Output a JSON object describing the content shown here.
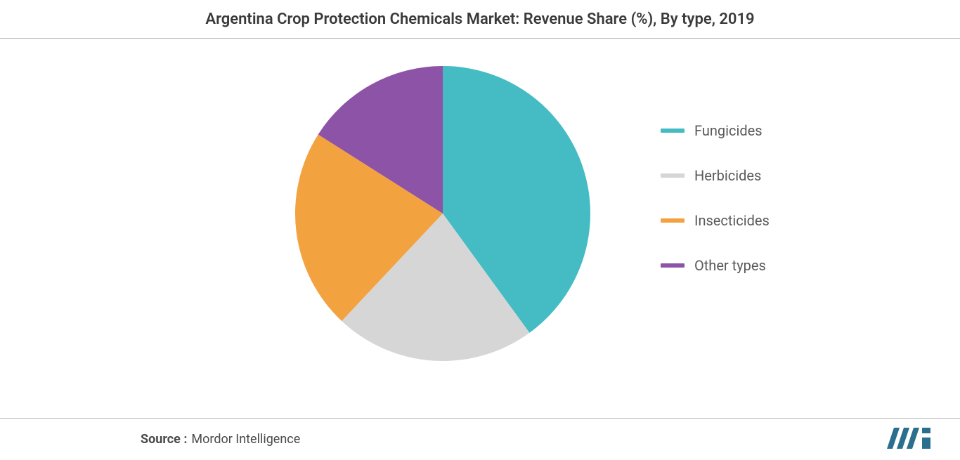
{
  "title": "Argentina Crop Protection Chemicals Market: Revenue Share (%), By type, 2019",
  "source_label": "Source :",
  "source_value": "Mordor Intelligence",
  "chart": {
    "type": "pie",
    "background_color": "#ffffff",
    "start_angle_deg": 0,
    "slices": [
      {
        "name": "Fungicides",
        "value": 40,
        "color": "#45bcc4"
      },
      {
        "name": "Herbicides",
        "value": 22,
        "color": "#d6d6d6"
      },
      {
        "name": "Insecticides",
        "value": 22,
        "color": "#f3a240"
      },
      {
        "name": "Other types",
        "value": 16,
        "color": "#8d53a6"
      }
    ],
    "legend_font_size_pt": 15,
    "legend_text_color": "#5a5a5a",
    "title_font_size_pt": 17,
    "title_font_weight": 600
  },
  "logo": {
    "bar_color": "#2a6f8e",
    "accent_color": "#2a6f8e"
  }
}
